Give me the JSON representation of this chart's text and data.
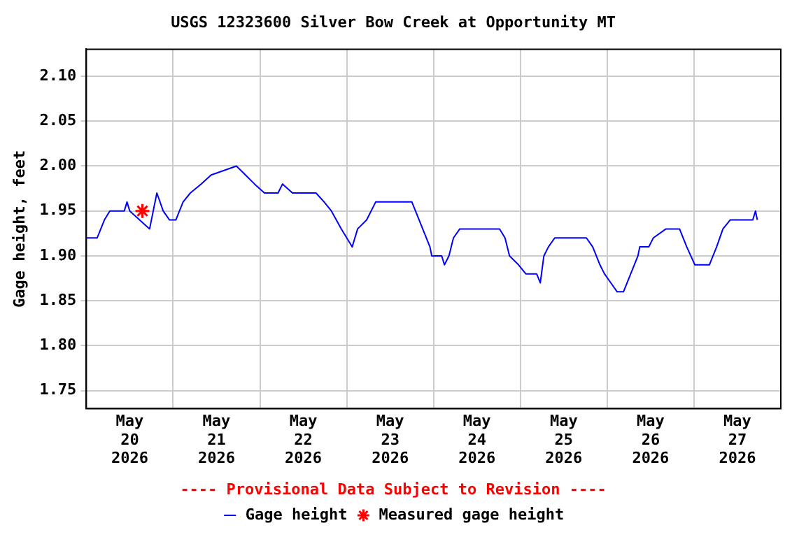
{
  "chart_data": {
    "type": "line",
    "title": "USGS 12323600 Silver Bow Creek at Opportunity MT",
    "ylabel": "Gage height, feet",
    "annotations": [
      "---- Provisional Data Subject to Revision ----"
    ],
    "xlim": [
      "2026-05-20",
      "2026-05-28"
    ],
    "xticks": [
      {
        "value": "2026-05-20T12:00",
        "label": "May 20 2026"
      },
      {
        "value": "2026-05-21",
        "label": null
      },
      {
        "value": "2026-05-21T12:00",
        "label": "May 21 2026"
      },
      {
        "value": "2026-05-22",
        "label": null
      },
      {
        "value": "2026-05-22T12:00",
        "label": "May 22 2026"
      },
      {
        "value": "2026-05-23",
        "label": null
      },
      {
        "value": "2026-05-23T12:00",
        "label": "May 23 2026"
      },
      {
        "value": "2026-05-24",
        "label": null
      },
      {
        "value": "2026-05-24T12:00",
        "label": "May 24 2026"
      },
      {
        "value": "2026-05-25",
        "label": null
      },
      {
        "value": "2026-05-25T12:00",
        "label": "May 25 2026"
      },
      {
        "value": "2026-05-26",
        "label": null
      },
      {
        "value": "2026-05-26T12:00",
        "label": "May 26 2026"
      },
      {
        "value": "2026-05-27",
        "label": null
      },
      {
        "value": "2026-05-27T12:00",
        "label": "May 27 2026"
      }
    ],
    "ylim": [
      1.73,
      2.13
    ],
    "yticks": [
      {
        "value": 1.75,
        "label": "1.75"
      },
      {
        "value": 1.8,
        "label": "1.80"
      },
      {
        "value": 1.85,
        "label": "1.85"
      },
      {
        "value": 1.9,
        "label": "1.90"
      },
      {
        "value": 1.95,
        "label": "1.95"
      },
      {
        "value": 2.0,
        "label": "2.00"
      },
      {
        "value": 2.05,
        "label": "2.05"
      },
      {
        "value": 2.1,
        "label": "2.10"
      }
    ],
    "grid": true,
    "legend": "bottom",
    "series": [
      {
        "name": "Gage height",
        "color": "#0000ff",
        "marker": "none",
        "x": [
          "2026-05-20T00:00",
          "2026-05-20T03:00",
          "2026-05-20T04:00",
          "2026-05-20T05:00",
          "2026-05-20T06:30",
          "2026-05-20T10:30",
          "2026-05-20T11:15",
          "2026-05-20T12:00",
          "2026-05-20T17:30",
          "2026-05-20T19:30",
          "2026-05-20T21:15",
          "2026-05-20T23:00",
          "2026-05-21T00:45",
          "2026-05-21T02:45",
          "2026-05-21T04:45",
          "2026-05-21T07:45",
          "2026-05-21T10:30",
          "2026-05-21T17:30",
          "2026-05-21T20:00",
          "2026-05-21T22:30",
          "2026-05-22T01:15",
          "2026-05-22T05:00",
          "2026-05-22T06:15",
          "2026-05-22T09:00",
          "2026-05-22T15:30",
          "2026-05-22T17:45",
          "2026-05-22T19:45",
          "2026-05-22T22:30",
          "2026-05-23T01:30",
          "2026-05-23T03:00",
          "2026-05-23T05:30",
          "2026-05-23T08:00",
          "2026-05-23T18:00",
          "2026-05-23T19:00",
          "2026-05-23T21:00",
          "2026-05-23T23:00",
          "2026-05-23T23:30",
          "2026-05-24T02:15",
          "2026-05-24T03:00",
          "2026-05-24T04:15",
          "2026-05-24T05:30",
          "2026-05-24T07:15",
          "2026-05-24T18:15",
          "2026-05-24T19:45",
          "2026-05-24T21:00",
          "2026-05-24T23:30",
          "2026-05-25T01:30",
          "2026-05-25T04:30",
          "2026-05-25T05:30",
          "2026-05-25T06:30",
          "2026-05-25T07:45",
          "2026-05-25T09:30",
          "2026-05-25T18:15",
          "2026-05-25T20:00",
          "2026-05-25T22:00",
          "2026-05-25T23:15",
          "2026-05-26T01:00",
          "2026-05-26T02:45",
          "2026-05-26T04:30",
          "2026-05-26T06:30",
          "2026-05-26T08:30",
          "2026-05-26T09:00",
          "2026-05-26T11:30",
          "2026-05-26T12:45",
          "2026-05-26T16:15",
          "2026-05-26T20:00",
          "2026-05-26T22:00",
          "2026-05-27T00:15",
          "2026-05-27T04:15",
          "2026-05-27T06:15",
          "2026-05-27T08:00",
          "2026-05-27T10:00",
          "2026-05-27T16:15",
          "2026-05-27T17:00",
          "2026-05-27T17:30"
        ],
        "values": [
          1.92,
          1.92,
          1.93,
          1.94,
          1.95,
          1.95,
          1.96,
          1.95,
          1.93,
          1.97,
          1.95,
          1.94,
          1.94,
          1.96,
          1.97,
          1.98,
          1.99,
          2.0,
          1.99,
          1.98,
          1.97,
          1.97,
          1.98,
          1.97,
          1.97,
          1.96,
          1.95,
          1.93,
          1.91,
          1.93,
          1.94,
          1.96,
          1.96,
          1.95,
          1.93,
          1.91,
          1.9,
          1.9,
          1.89,
          1.9,
          1.92,
          1.93,
          1.93,
          1.92,
          1.9,
          1.89,
          1.88,
          1.88,
          1.87,
          1.9,
          1.91,
          1.92,
          1.92,
          1.91,
          1.89,
          1.88,
          1.87,
          1.86,
          1.86,
          1.88,
          1.9,
          1.91,
          1.91,
          1.92,
          1.93,
          1.93,
          1.91,
          1.89,
          1.89,
          1.91,
          1.93,
          1.94,
          1.94,
          1.95,
          1.94
        ]
      },
      {
        "name": "Measured gage height",
        "type": "scatter",
        "color": "#ff0000",
        "marker": "cross",
        "x": [
          "2026-05-20T15:30"
        ],
        "values": [
          1.95
        ]
      }
    ]
  }
}
